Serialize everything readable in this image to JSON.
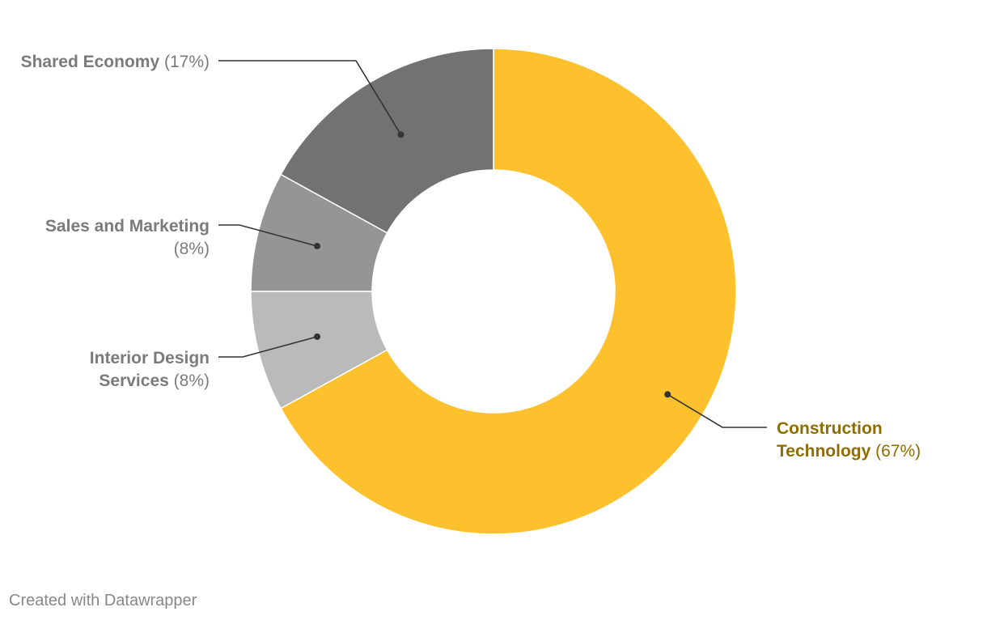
{
  "chart_data": {
    "type": "pie",
    "donut": true,
    "start_angle_deg": 0,
    "direction": "clockwise",
    "slices": [
      {
        "id": "construction",
        "label_lines": [
          "Construction",
          "Technology"
        ],
        "pct_label": "(67%)",
        "value": 67,
        "color": "#fdc12e",
        "label_color": "#8f6d00",
        "side": "right"
      },
      {
        "id": "interior",
        "label_lines": [
          "Interior Design",
          "Services"
        ],
        "pct_label": "(8%)",
        "value": 8,
        "color": "#bababa",
        "label_color": "#7b7b7b",
        "side": "left"
      },
      {
        "id": "sales",
        "label_lines": [
          "Sales and Marketing"
        ],
        "pct_label": "(8%)",
        "value": 8,
        "color": "#959595",
        "label_color": "#7b7b7b",
        "side": "left"
      },
      {
        "id": "shared",
        "label_lines": [
          "Shared Economy"
        ],
        "pct_label": "(17%)",
        "value": 17,
        "color": "#727272",
        "label_color": "#7b7b7b",
        "side": "left"
      }
    ]
  },
  "footer": "Created with Datawrapper"
}
